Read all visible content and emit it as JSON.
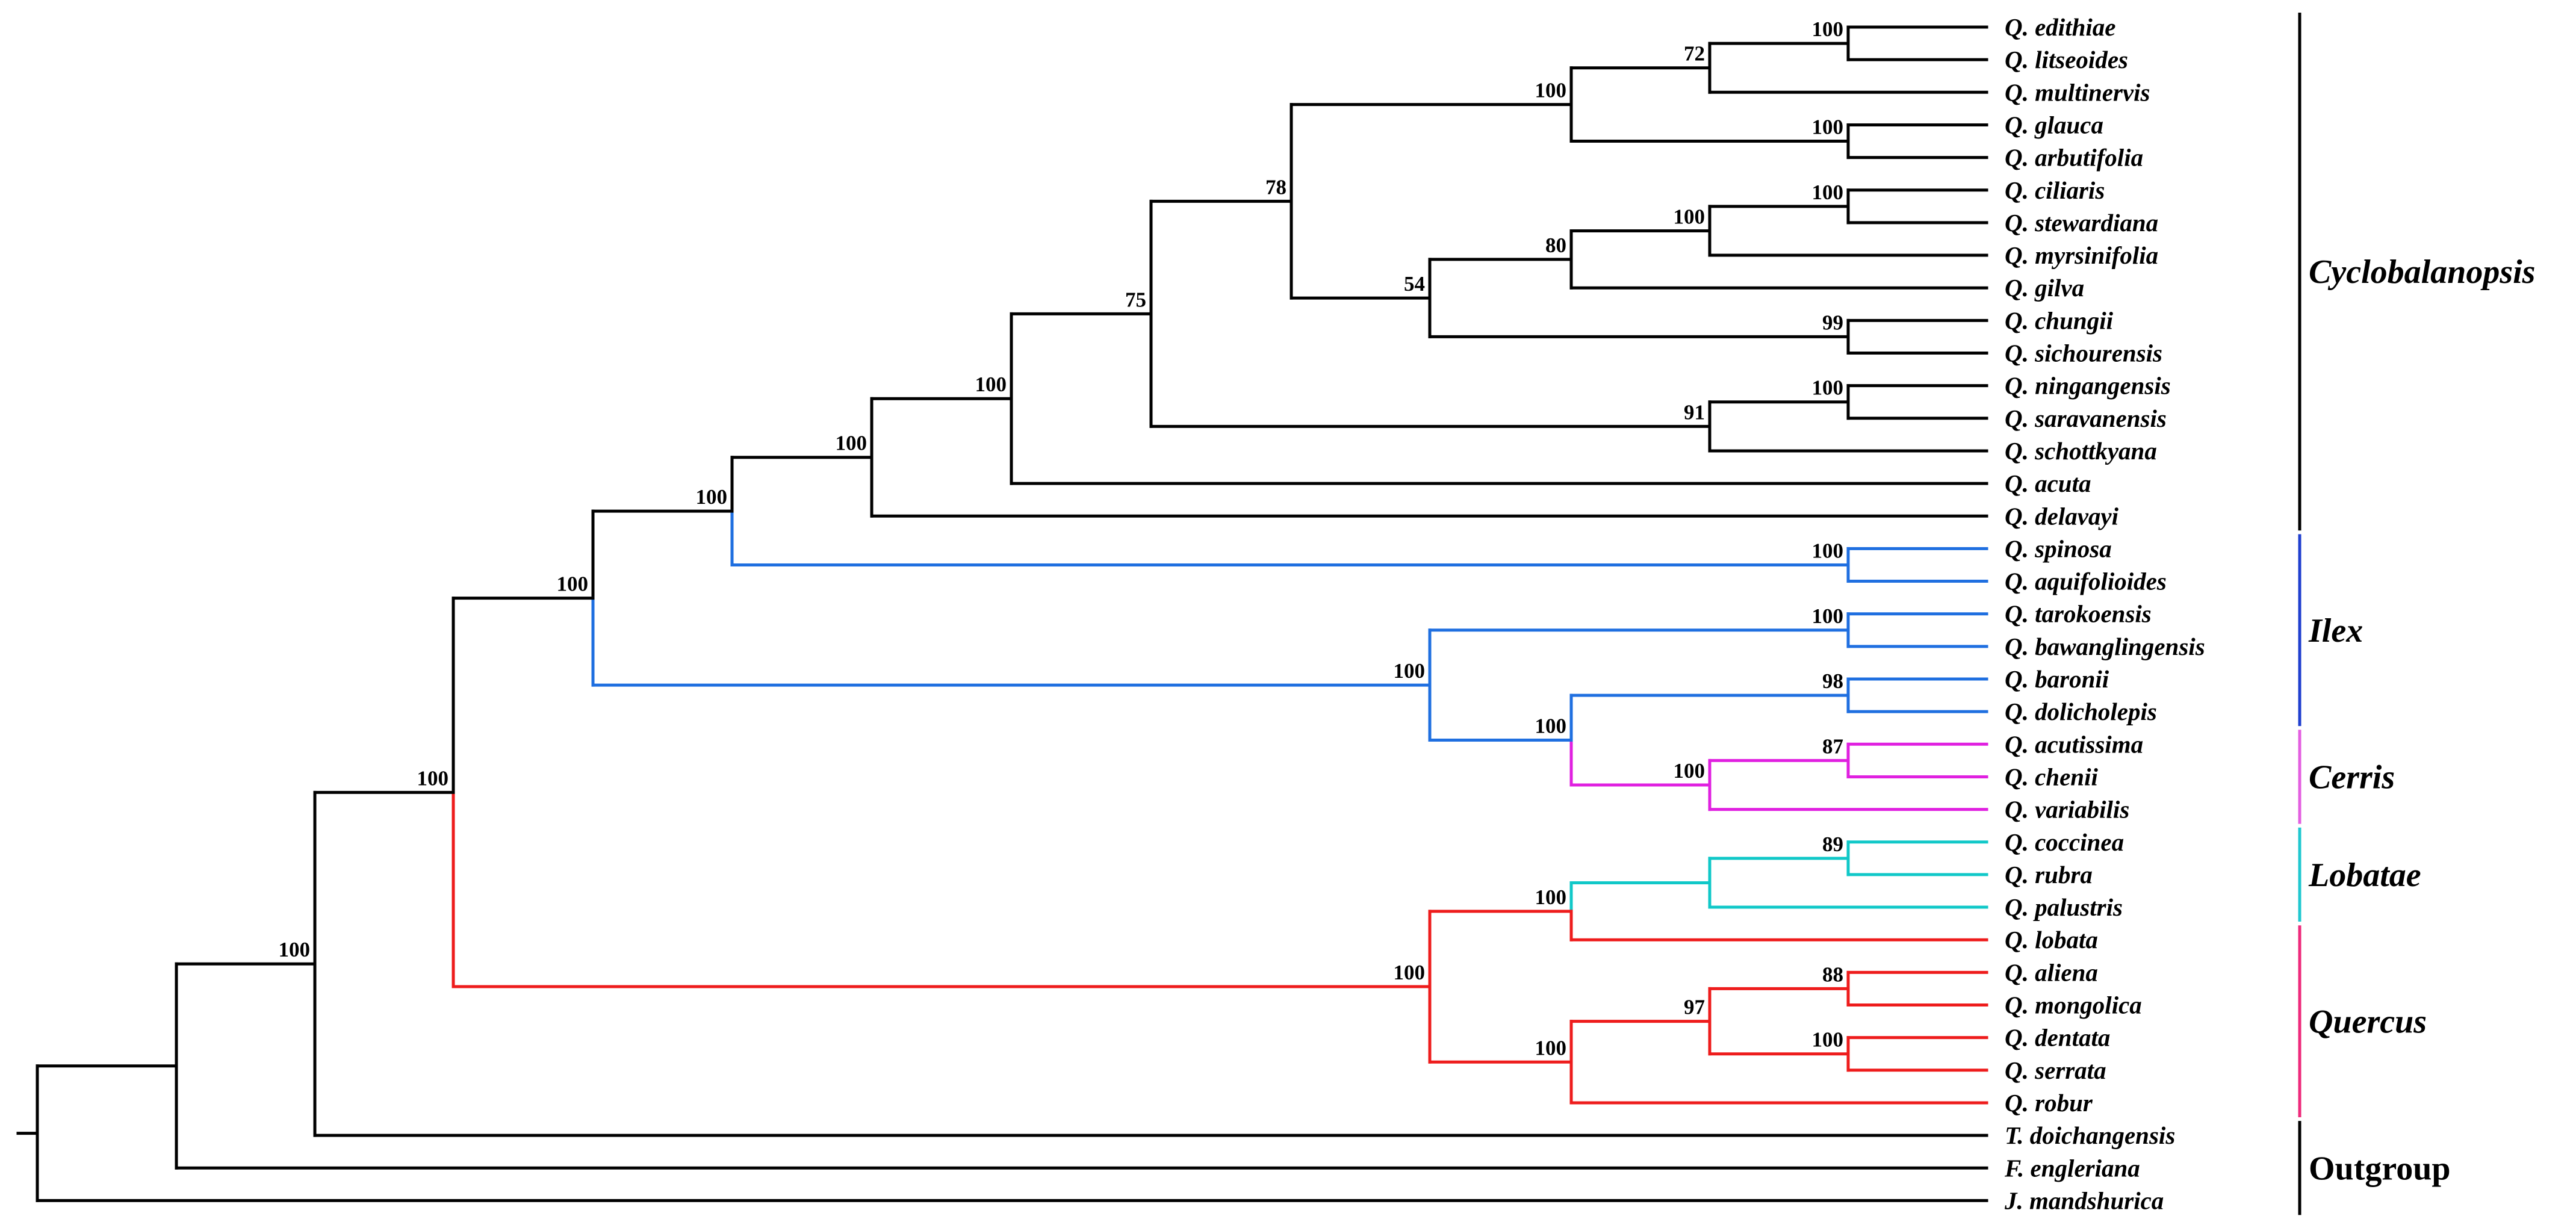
{
  "taxa": [
    {
      "genus": "Q",
      "epithet": "edithiae"
    },
    {
      "genus": "Q",
      "epithet": "litseoides"
    },
    {
      "genus": "Q",
      "epithet": "multinervis"
    },
    {
      "genus": "Q",
      "epithet": "glauca"
    },
    {
      "genus": "Q",
      "epithet": "arbutifolia"
    },
    {
      "genus": "Q",
      "epithet": "ciliaris"
    },
    {
      "genus": "Q",
      "epithet": "stewardiana"
    },
    {
      "genus": "Q",
      "epithet": "myrsinifolia"
    },
    {
      "genus": "Q",
      "epithet": "gilva"
    },
    {
      "genus": "Q",
      "epithet": "chungii"
    },
    {
      "genus": "Q",
      "epithet": "sichourensis"
    },
    {
      "genus": "Q",
      "epithet": "ningangensis"
    },
    {
      "genus": "Q",
      "epithet": "saravanensis"
    },
    {
      "genus": "Q",
      "epithet": "schottkyana"
    },
    {
      "genus": "Q",
      "epithet": "acuta"
    },
    {
      "genus": "Q",
      "epithet": "delavayi"
    },
    {
      "genus": "Q",
      "epithet": "spinosa"
    },
    {
      "genus": "Q",
      "epithet": "aquifolioides"
    },
    {
      "genus": "Q",
      "epithet": "tarokoensis"
    },
    {
      "genus": "Q",
      "epithet": "bawanglingensis"
    },
    {
      "genus": "Q",
      "epithet": "baronii"
    },
    {
      "genus": "Q",
      "epithet": "dolicholepis"
    },
    {
      "genus": "Q",
      "epithet": "acutissima"
    },
    {
      "genus": "Q",
      "epithet": "chenii"
    },
    {
      "genus": "Q",
      "epithet": "variabilis"
    },
    {
      "genus": "Q",
      "epithet": "coccinea"
    },
    {
      "genus": "Q",
      "epithet": "rubra"
    },
    {
      "genus": "Q",
      "epithet": "palustris"
    },
    {
      "genus": "Q",
      "epithet": "lobata"
    },
    {
      "genus": "Q",
      "epithet": "aliena"
    },
    {
      "genus": "Q",
      "epithet": "mongolica"
    },
    {
      "genus": "Q",
      "epithet": "dentata"
    },
    {
      "genus": "Q",
      "epithet": "serrata"
    },
    {
      "genus": "Q",
      "epithet": "robur"
    },
    {
      "genus": "T",
      "epithet": "doichangensis"
    },
    {
      "genus": "F",
      "epithet": "engleriana"
    },
    {
      "genus": "J",
      "epithet": "mandshurica"
    }
  ],
  "support_values": [
    "100",
    "72",
    "100",
    "100",
    "100",
    "100",
    "80",
    "99",
    "54",
    "78",
    "100",
    "91",
    "75",
    "100",
    "100",
    "100",
    "100",
    "100",
    "98",
    "87",
    "100",
    "100",
    "100",
    "100",
    "89",
    "88",
    "100",
    "97",
    "100",
    "100",
    "100",
    "100",
    "100"
  ],
  "clades": [
    {
      "name": "Cyclobalanopsis",
      "italic": true,
      "color": "#000000"
    },
    {
      "name": "Ilex",
      "italic": true,
      "color": "#1f3fcf"
    },
    {
      "name": "Cerris",
      "italic": true,
      "color": "#e35fe0"
    },
    {
      "name": "Lobatae",
      "italic": true,
      "color": "#20c8d0"
    },
    {
      "name": "Quercus",
      "italic": true,
      "color": "#ee2a7b"
    },
    {
      "name": "Outgroup",
      "italic": false,
      "color": "#000000"
    }
  ],
  "branch_colors": {
    "default": "#000000",
    "ilex": "#1f6fe0",
    "cerris": "#e020e0",
    "lobatae": "#10c8c8",
    "quercus": "#ee1c1c"
  }
}
